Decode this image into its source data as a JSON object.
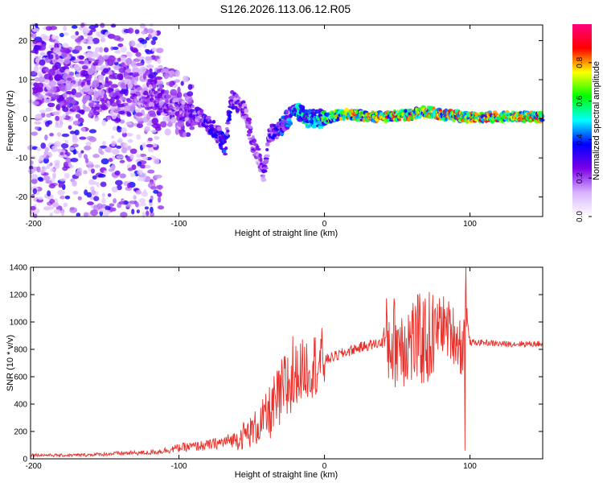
{
  "figure_title": "S126.2026.113.06.12.R05",
  "chart_data": [
    {
      "type": "heatmap",
      "title": "",
      "xlabel": "Height of straight line (km)",
      "ylabel": "Frequency (Hz)",
      "xlim": [
        -202,
        150
      ],
      "ylim": [
        -25,
        24
      ],
      "xticks": [
        -200,
        -100,
        0,
        100
      ],
      "yticks": [
        -20,
        -10,
        0,
        10,
        20
      ],
      "colorbar": {
        "label": "Normalized spectral amplitude",
        "range": [
          0,
          1
        ],
        "ticks": [
          0.0,
          0.2,
          0.4,
          0.6,
          0.8
        ],
        "tick_labels": [
          "0.0",
          "0.2",
          "0.4",
          "0.6",
          "0.8"
        ],
        "colors": [
          "#ffffff",
          "#d9b3ff",
          "#7a00e6",
          "#0000ff",
          "#00ffff",
          "#00ff00",
          "#ffff00",
          "#ff0000",
          "#ff0080"
        ]
      },
      "ridge": {
        "x": [
          -130,
          -110,
          -95,
          -85,
          -75,
          -68,
          -64,
          -55,
          -50,
          -45,
          -42,
          -38,
          -30,
          -20,
          -10,
          0,
          10,
          20,
          40,
          60,
          70,
          80,
          100,
          120,
          150
        ],
        "frequency": [
          6,
          4,
          2,
          0,
          -3,
          -7,
          5,
          2,
          -5,
          -10,
          -14,
          -4,
          -2,
          2,
          0,
          0,
          1,
          1,
          0.5,
          1,
          2,
          1,
          0.5,
          0.5,
          0.5
        ],
        "amplitude": [
          0.25,
          0.3,
          0.3,
          0.35,
          0.4,
          0.45,
          0.35,
          0.3,
          0.3,
          0.25,
          0.3,
          0.35,
          0.45,
          0.55,
          0.6,
          0.7,
          0.8,
          0.85,
          0.9,
          0.9,
          0.85,
          0.9,
          0.9,
          0.9,
          0.9
        ]
      }
    },
    {
      "type": "line",
      "title": "",
      "xlabel": "Height of straight line (km)",
      "ylabel": "SNR (10 * v/v)",
      "xlim": [
        -202,
        150
      ],
      "ylim": [
        0,
        1400
      ],
      "xticks": [
        -200,
        -100,
        0,
        100
      ],
      "yticks": [
        0,
        200,
        400,
        600,
        800,
        1000,
        1200,
        1400
      ],
      "color": "#e8302a",
      "series": [
        {
          "x": [
            -202,
            -180,
            -160,
            -140,
            -120,
            -110,
            -100,
            -90,
            -80,
            -70,
            -60,
            -50,
            -45,
            -40,
            -35,
            -30,
            -25,
            -20,
            -15,
            -10,
            -5,
            0,
            5,
            10,
            20,
            30,
            40,
            50,
            60,
            70,
            75,
            80,
            85,
            90,
            95,
            97,
            100,
            110,
            120,
            130,
            140,
            150
          ],
          "y": [
            30,
            25,
            30,
            40,
            45,
            60,
            80,
            90,
            100,
            120,
            150,
            200,
            250,
            300,
            380,
            450,
            550,
            620,
            650,
            680,
            700,
            720,
            740,
            760,
            800,
            830,
            850,
            860,
            860,
            870,
            900,
            1000,
            950,
            900,
            800,
            1100,
            850,
            850,
            840,
            840,
            840,
            840
          ]
        }
      ]
    }
  ]
}
